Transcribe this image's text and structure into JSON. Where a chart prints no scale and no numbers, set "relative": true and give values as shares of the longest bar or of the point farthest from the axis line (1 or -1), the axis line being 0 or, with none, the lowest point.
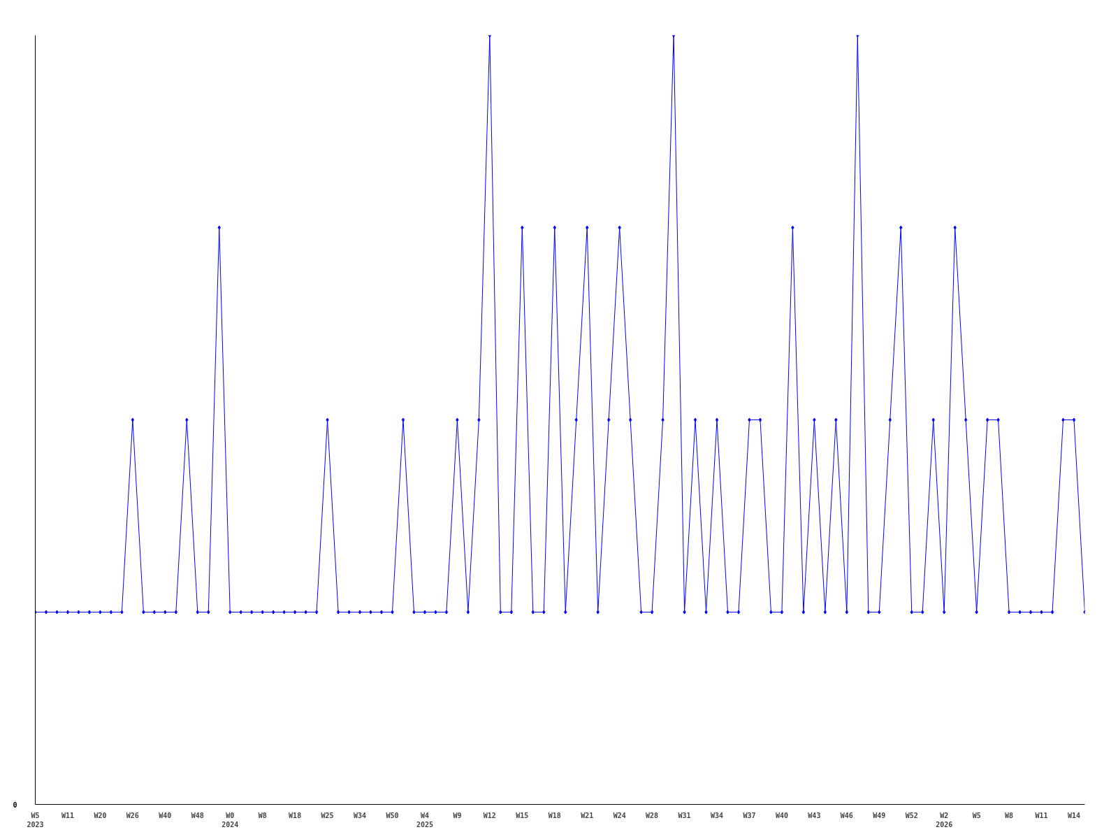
{
  "chart_data": {
    "type": "line",
    "relative": true,
    "marker": "diamond",
    "line_style": "solid",
    "categories": [
      "W5\n2023",
      null,
      null,
      "W11",
      null,
      null,
      "W20",
      null,
      null,
      "W26",
      null,
      null,
      "W40",
      null,
      null,
      "W48",
      null,
      null,
      "W0\n2024",
      null,
      null,
      "W8",
      null,
      null,
      "W18",
      null,
      null,
      "W25",
      null,
      null,
      "W34",
      null,
      null,
      "W50",
      null,
      null,
      "W4\n2025",
      null,
      null,
      "W9",
      null,
      null,
      "W12",
      null,
      null,
      "W15",
      null,
      null,
      "W18",
      null,
      null,
      "W21",
      null,
      null,
      "W24",
      null,
      null,
      "W28",
      null,
      null,
      "W31",
      null,
      null,
      "W34",
      null,
      null,
      "W37",
      null,
      null,
      "W40",
      null,
      null,
      "W43",
      null,
      null,
      "W46",
      null,
      null,
      "W49",
      null,
      null,
      "W52",
      null,
      null,
      "W2\n2026",
      null,
      null,
      "W5",
      null,
      null,
      "W8",
      null,
      null,
      "W11",
      null,
      null,
      "W14",
      null
    ],
    "series": [
      {
        "color": "#0000ff",
        "values": [
          0.25,
          0.25,
          0.25,
          0.25,
          0.25,
          0.25,
          0.25,
          0.25,
          0.25,
          0.5,
          0.25,
          0.25,
          0.25,
          0.25,
          0.5,
          0.25,
          0.25,
          0.75,
          0.25,
          0.25,
          0.25,
          0.25,
          0.25,
          0.25,
          0.25,
          0.25,
          0.25,
          0.5,
          0.25,
          0.25,
          0.25,
          0.25,
          0.25,
          0.25,
          0.5,
          0.25,
          0.25,
          0.25,
          0.25,
          0.5,
          0.25,
          0.5,
          1,
          0.25,
          0.25,
          0.75,
          0.25,
          0.25,
          0.75,
          0.25,
          0.5,
          0.75,
          0.25,
          0.5,
          0.75,
          0.5,
          0.25,
          0.25,
          0.5,
          1,
          0.25,
          0.5,
          0.25,
          0.5,
          0.25,
          0.25,
          0.5,
          0.5,
          0.25,
          0.25,
          0.75,
          0.25,
          0.5,
          0.25,
          0.5,
          0.25,
          1,
          0.25,
          0.25,
          0.5,
          0.75,
          0.25,
          0.25,
          0.5,
          0.25,
          0.75,
          0.5,
          0.25,
          0.5,
          0.5,
          0.25,
          0.25,
          0.25,
          0.25,
          0.25,
          0.5,
          0.5,
          0.25
        ]
      }
    ],
    "annotations": [
      "0"
    ]
  }
}
